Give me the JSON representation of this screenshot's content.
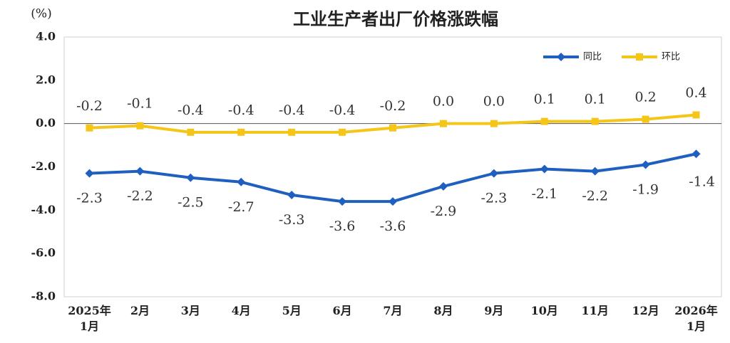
{
  "chart_data": {
    "type": "line",
    "title": "工业生产者出厂价格涨跌幅",
    "y_label": "(%)",
    "categories": [
      "2025年\n1月",
      "2月",
      "3月",
      "4月",
      "5月",
      "6月",
      "7月",
      "8月",
      "9月",
      "10月",
      "11月",
      "12月",
      "2026年\n1月"
    ],
    "series": [
      {
        "name": "同比",
        "color": "#1f5fbf",
        "marker": "diamond",
        "values": [
          -2.3,
          -2.2,
          -2.5,
          -2.7,
          -3.3,
          -3.6,
          -3.6,
          -2.9,
          -2.3,
          -2.1,
          -2.2,
          -1.9,
          -1.4
        ]
      },
      {
        "name": "环比",
        "color": "#f5c518",
        "marker": "square",
        "values": [
          -0.2,
          -0.1,
          -0.4,
          -0.4,
          -0.4,
          -0.4,
          -0.2,
          0.0,
          0.0,
          0.1,
          0.1,
          0.2,
          0.4
        ],
        "value_labels": [
          "-0.2",
          "-0.1",
          "-0.4",
          "-0.4",
          "-0.4",
          "-0.4",
          "-0.2",
          "0.0",
          "0.0",
          "0.1",
          "0.1",
          "0.2",
          "0.4"
        ]
      }
    ],
    "ylim": [
      -8,
      4
    ],
    "yticks": [
      {
        "value": 4,
        "label": "4.0"
      },
      {
        "value": 2,
        "label": "2.0"
      },
      {
        "value": 0,
        "label": "0.0"
      },
      {
        "value": -2,
        "label": "-2.0"
      },
      {
        "value": -4,
        "label": "-4.0"
      },
      {
        "value": -6,
        "label": "-6.0"
      },
      {
        "value": -8,
        "label": "-8.0"
      }
    ],
    "grid": false,
    "legend": "upper right"
  }
}
